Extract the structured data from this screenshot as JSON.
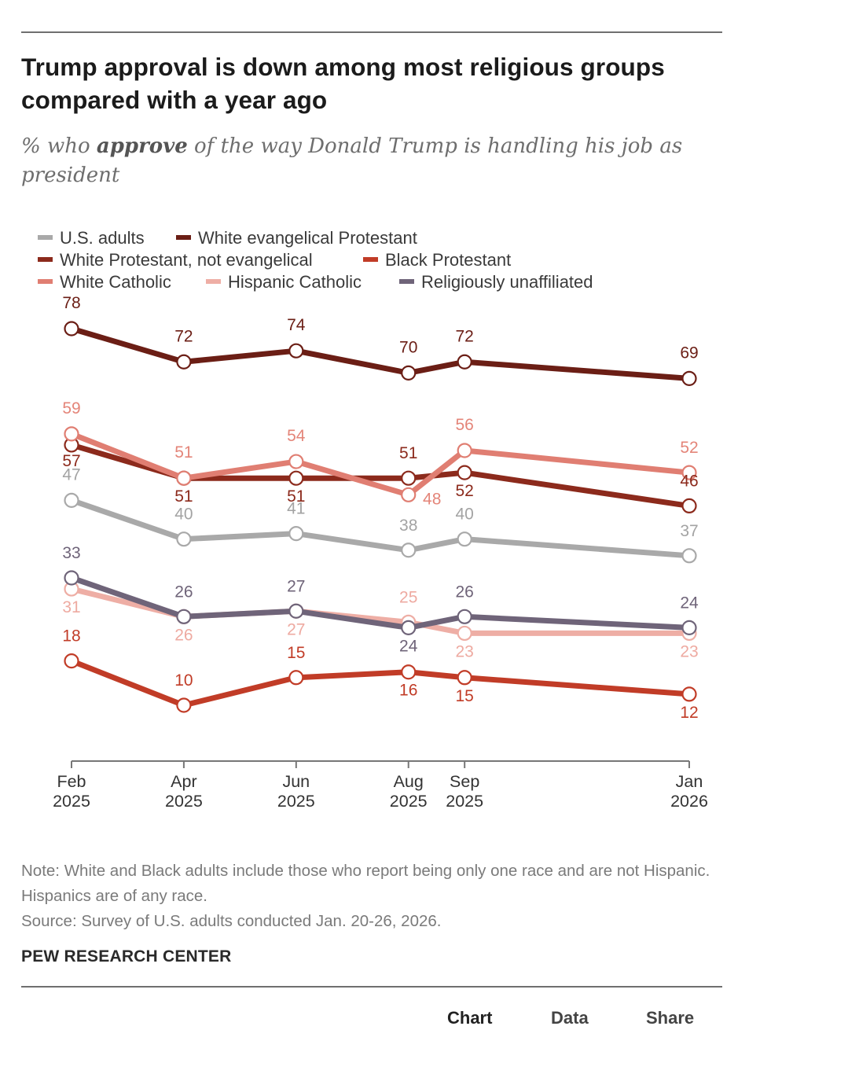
{
  "title": "Trump approval is down among most religious groups compared with a year ago",
  "subtitle": {
    "pre": "% who ",
    "emphasis": "approve",
    "post": " of the way Donald Trump is handling his job as president"
  },
  "chart_data": {
    "type": "line",
    "title": "Trump approval is down among most religious groups compared with a year ago",
    "subtitle": "% who approve of the way Donald Trump is handling his job as president",
    "xlabel": "",
    "ylabel": "",
    "x": [
      "Feb 2025",
      "Apr 2025",
      "Jun 2025",
      "Aug 2025",
      "Sep 2025",
      "Jan 2026"
    ],
    "x_ticks": [
      {
        "month": "Feb",
        "year": "2025"
      },
      {
        "month": "Apr",
        "year": "2025"
      },
      {
        "month": "Jun",
        "year": "2025"
      },
      {
        "month": "Aug",
        "year": "2025"
      },
      {
        "month": "Sep",
        "year": "2025"
      },
      {
        "month": "Jan",
        "year": "2026"
      }
    ],
    "x_months_since_start": [
      0,
      2,
      4,
      6,
      7,
      11
    ],
    "ylim": [
      10,
      78
    ],
    "grid": false,
    "legend_position": "top-left",
    "series": [
      {
        "name": "U.S. adults",
        "color": "#a9a9a9",
        "label_color": "#a3a3a3",
        "values": [
          47,
          40,
          41,
          38,
          40,
          37
        ]
      },
      {
        "name": "White evangelical Protestant",
        "color": "#6b1e15",
        "label_color": "#6b1e15",
        "values": [
          78,
          72,
          74,
          70,
          72,
          69
        ]
      },
      {
        "name": "White Protestant, not evangelical",
        "color": "#8c2a1c",
        "label_color": "#8c2a1c",
        "values": [
          57,
          51,
          51,
          51,
          52,
          46
        ]
      },
      {
        "name": "Black Protestant",
        "color": "#c13c27",
        "label_color": "#c13c27",
        "values": [
          18,
          10,
          15,
          16,
          15,
          12
        ]
      },
      {
        "name": "White Catholic",
        "color": "#e07e72",
        "label_color": "#e48579",
        "values": [
          59,
          51,
          54,
          48,
          56,
          52
        ]
      },
      {
        "name": "Hispanic Catholic",
        "color": "#eeaea5",
        "label_color": "#eeaaa1",
        "values": [
          31,
          26,
          27,
          25,
          23,
          23
        ]
      },
      {
        "name": "Religiously unaffiliated",
        "color": "#6f6479",
        "label_color": "#6f6479",
        "values": [
          33,
          26,
          27,
          24,
          26,
          24
        ]
      }
    ]
  },
  "notes": {
    "note": "Note: White and Black adults include those who report being only one race and are not Hispanic. Hispanics are of any race.",
    "source": "Source: Survey of U.S. adults conducted Jan. 20-26, 2026."
  },
  "brand": "PEW RESEARCH CENTER",
  "tabs": {
    "chart": "Chart",
    "data": "Data",
    "share": "Share"
  }
}
